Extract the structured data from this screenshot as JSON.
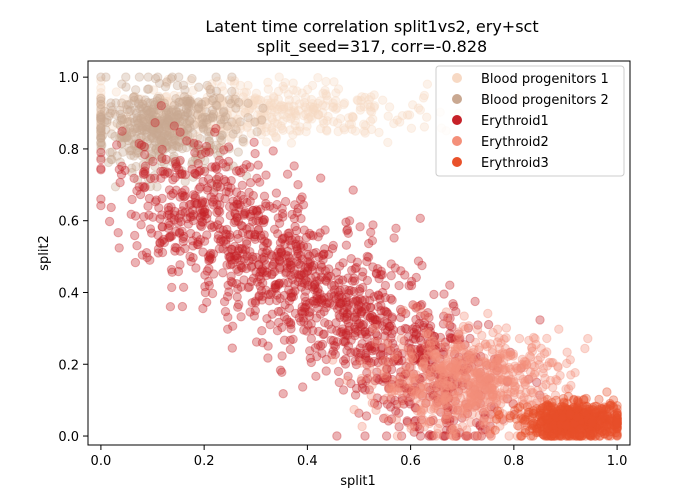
{
  "chart_data": {
    "type": "scatter",
    "title_line1": "Latent time correlation split1vs2, ery+sct",
    "title_line2": "split_seed=317, corr=-0.828",
    "xlabel": "split1",
    "ylabel": "split2",
    "xlim": [
      -0.025,
      1.025
    ],
    "ylim": [
      -0.025,
      1.045
    ],
    "xticks": [
      "0.0",
      "0.2",
      "0.4",
      "0.6",
      "0.8",
      "1.0"
    ],
    "yticks": [
      "0.0",
      "0.2",
      "0.4",
      "0.6",
      "0.8",
      "1.0"
    ],
    "grid": false,
    "legend_position": "top-right",
    "marker_alpha": 0.35,
    "series": [
      {
        "name": "Blood progenitors 1",
        "color": "#f7d9c4",
        "center": [
          0.28,
          0.9
        ],
        "spread": [
          0.16,
          0.04
        ],
        "count": 450
      },
      {
        "name": "Blood progenitors 2",
        "color": "#c9a891",
        "center": [
          0.12,
          0.86
        ],
        "spread": [
          0.07,
          0.06
        ],
        "count": 500
      },
      {
        "name": "Erythroid1",
        "color": "#c62128",
        "center": [
          0.35,
          0.5
        ],
        "spread": [
          0.13,
          0.14
        ],
        "count": 1400
      },
      {
        "name": "Erythroid2",
        "color": "#f4907a",
        "center": [
          0.72,
          0.15
        ],
        "spread": [
          0.09,
          0.07
        ],
        "count": 650
      },
      {
        "name": "Erythroid3",
        "color": "#e9512a",
        "center": [
          0.92,
          0.04
        ],
        "spread": [
          0.05,
          0.025
        ],
        "count": 700
      }
    ]
  }
}
